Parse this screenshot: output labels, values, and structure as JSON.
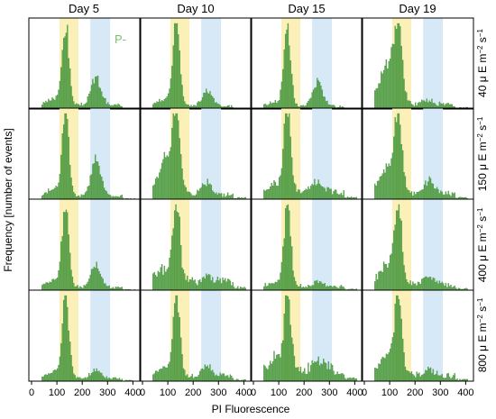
{
  "figure": {
    "columns": [
      "Day 5",
      "Day 10",
      "Day 15",
      "Day 19"
    ],
    "rows": [
      {
        "value": "40",
        "unit": "μ E m",
        "exp1": "−2",
        "mid": " s",
        "exp2": "−1"
      },
      {
        "value": "150",
        "unit": "μ E m",
        "exp1": "−2",
        "mid": " s",
        "exp2": "−1"
      },
      {
        "value": "400",
        "unit": "μ E m",
        "exp1": "−2",
        "mid": " s",
        "exp2": "−1"
      },
      {
        "value": "800",
        "unit": "μ E m",
        "exp1": "−2",
        "mid": " s",
        "exp2": "−1"
      }
    ],
    "xlabel": "PI Fluorescence",
    "ylabel": "Frequency [number of events]",
    "annotation": "P-",
    "colors": {
      "bars": "#5aa84a",
      "bar_edge": "#3f8a36",
      "gate1": "#fbf0b8",
      "gate2": "#d7e8f7",
      "annotation": "#7cc06b"
    }
  },
  "chart_data": {
    "type": "histogram",
    "xlim": [
      0,
      420
    ],
    "xticks": [
      0,
      100,
      200,
      300,
      400
    ],
    "gates": [
      [
        110,
        185
      ],
      [
        232,
        310
      ]
    ],
    "bin_width": 5,
    "panels": [
      [
        {
          "peak1": 0.92,
          "peak2": 0.32,
          "shoulder": 0.08,
          "noise": 0.04
        },
        {
          "peak1": 0.95,
          "peak2": 0.18,
          "shoulder": 0.1,
          "noise": 0.03
        },
        {
          "peak1": 0.94,
          "peak2": 0.28,
          "shoulder": 0.06,
          "noise": 0.03
        },
        {
          "peak1": 0.78,
          "peak2": 0.06,
          "shoulder": 0.5,
          "noise": 0.05
        }
      ],
      [
        {
          "peak1": 0.92,
          "peak2": 0.42,
          "shoulder": 0.1,
          "noise": 0.03
        },
        {
          "peak1": 0.85,
          "peak2": 0.14,
          "shoulder": 0.45,
          "noise": 0.05
        },
        {
          "peak1": 0.95,
          "peak2": 0.12,
          "shoulder": 0.1,
          "noise": 0.08
        },
        {
          "peak1": 0.8,
          "peak2": 0.15,
          "shoulder": 0.35,
          "noise": 0.06
        }
      ],
      [
        {
          "peak1": 0.95,
          "peak2": 0.26,
          "shoulder": 0.08,
          "noise": 0.03
        },
        {
          "peak1": 0.92,
          "peak2": 0.08,
          "shoulder": 0.15,
          "noise": 0.1
        },
        {
          "peak1": 0.95,
          "peak2": 0.06,
          "shoulder": 0.05,
          "noise": 0.04
        },
        {
          "peak1": 0.88,
          "peak2": 0.1,
          "shoulder": 0.25,
          "noise": 0.06
        }
      ],
      [
        {
          "peak1": 0.95,
          "peak2": 0.1,
          "shoulder": 0.08,
          "noise": 0.03
        },
        {
          "peak1": 0.95,
          "peak2": 0.12,
          "shoulder": 0.1,
          "noise": 0.06
        },
        {
          "peak1": 0.9,
          "peak2": 0.08,
          "shoulder": 0.12,
          "noise": 0.14
        },
        {
          "peak1": 0.92,
          "peak2": 0.08,
          "shoulder": 0.28,
          "noise": 0.06
        }
      ]
    ]
  }
}
